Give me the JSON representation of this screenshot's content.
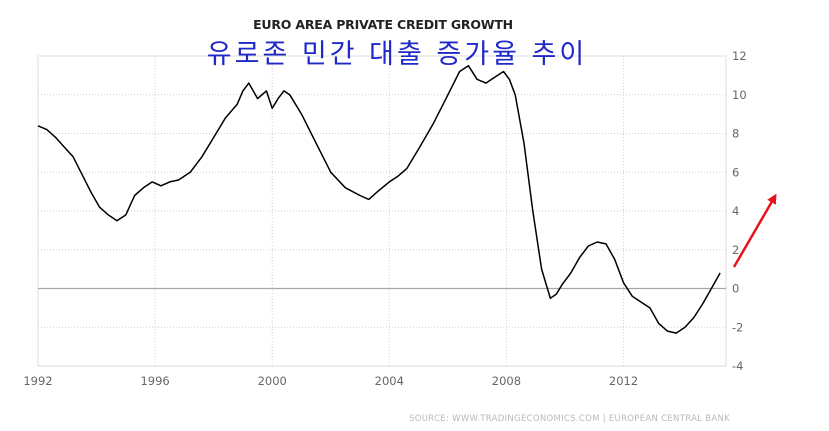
{
  "chart_data": {
    "type": "line",
    "title": "EURO AREA PRIVATE CREDIT GROWTH",
    "subtitle": "유로존 민간 대출 증가율 추이",
    "xlabel": "",
    "ylabel": "",
    "xlim": [
      1992,
      2015.5
    ],
    "ylim": [
      -4,
      12
    ],
    "x_ticks": [
      "1992",
      "1996",
      "2000",
      "2004",
      "2008",
      "2012"
    ],
    "x_tick_values": [
      1992,
      1996,
      2000,
      2004,
      2008,
      2012
    ],
    "y_ticks": [
      "12",
      "10",
      "8",
      "6",
      "4",
      "2",
      "0",
      "-2",
      "-4"
    ],
    "y_tick_values": [
      12,
      10,
      8,
      6,
      4,
      2,
      0,
      -2,
      -4
    ],
    "grid": true,
    "legend": "none",
    "y_axis_position": "right",
    "source": "SOURCE: WWW.TRADINGECONOMICS.COM | EUROPEAN CENTRAL BANK",
    "annotation": "red upward arrow after the latest point",
    "series": [
      {
        "color": "#000000",
        "x": [
          1992.0,
          1992.3,
          1992.6,
          1992.9,
          1993.2,
          1993.5,
          1993.8,
          1994.1,
          1994.4,
          1994.7,
          1995.0,
          1995.3,
          1995.6,
          1995.9,
          1996.2,
          1996.5,
          1996.8,
          1997.2,
          1997.6,
          1998.0,
          1998.4,
          1998.8,
          1999.0,
          1999.2,
          1999.5,
          1999.8,
          2000.0,
          2000.2,
          2000.4,
          2000.6,
          2001.0,
          2001.5,
          2002.0,
          2002.5,
          2003.0,
          2003.3,
          2003.6,
          2004.0,
          2004.3,
          2004.6,
          2005.0,
          2005.5,
          2006.0,
          2006.4,
          2006.7,
          2007.0,
          2007.3,
          2007.6,
          2007.9,
          2008.1,
          2008.3,
          2008.6,
          2008.9,
          2009.2,
          2009.5,
          2009.7,
          2009.9,
          2010.2,
          2010.5,
          2010.8,
          2011.1,
          2011.4,
          2011.7,
          2012.0,
          2012.3,
          2012.6,
          2012.9,
          2013.2,
          2013.5,
          2013.8,
          2014.1,
          2014.4,
          2014.7,
          2015.0,
          2015.3
        ],
        "values": [
          8.4,
          8.2,
          7.8,
          7.3,
          6.8,
          5.9,
          5.0,
          4.2,
          3.8,
          3.5,
          3.8,
          4.8,
          5.2,
          5.5,
          5.3,
          5.5,
          5.6,
          6.0,
          6.8,
          7.8,
          8.8,
          9.5,
          10.2,
          10.6,
          9.8,
          10.2,
          9.3,
          9.8,
          10.2,
          10.0,
          9.0,
          7.5,
          6.0,
          5.2,
          4.8,
          4.6,
          5.0,
          5.5,
          5.8,
          6.2,
          7.2,
          8.5,
          10.0,
          11.2,
          11.5,
          10.8,
          10.6,
          10.9,
          11.2,
          10.8,
          10.0,
          7.5,
          4.0,
          1.0,
          -0.5,
          -0.3,
          0.2,
          0.8,
          1.6,
          2.2,
          2.4,
          2.3,
          1.5,
          0.3,
          -0.4,
          -0.7,
          -1.0,
          -1.8,
          -2.2,
          -2.3,
          -2.0,
          -1.5,
          -0.8,
          0.0,
          0.8
        ]
      }
    ]
  }
}
